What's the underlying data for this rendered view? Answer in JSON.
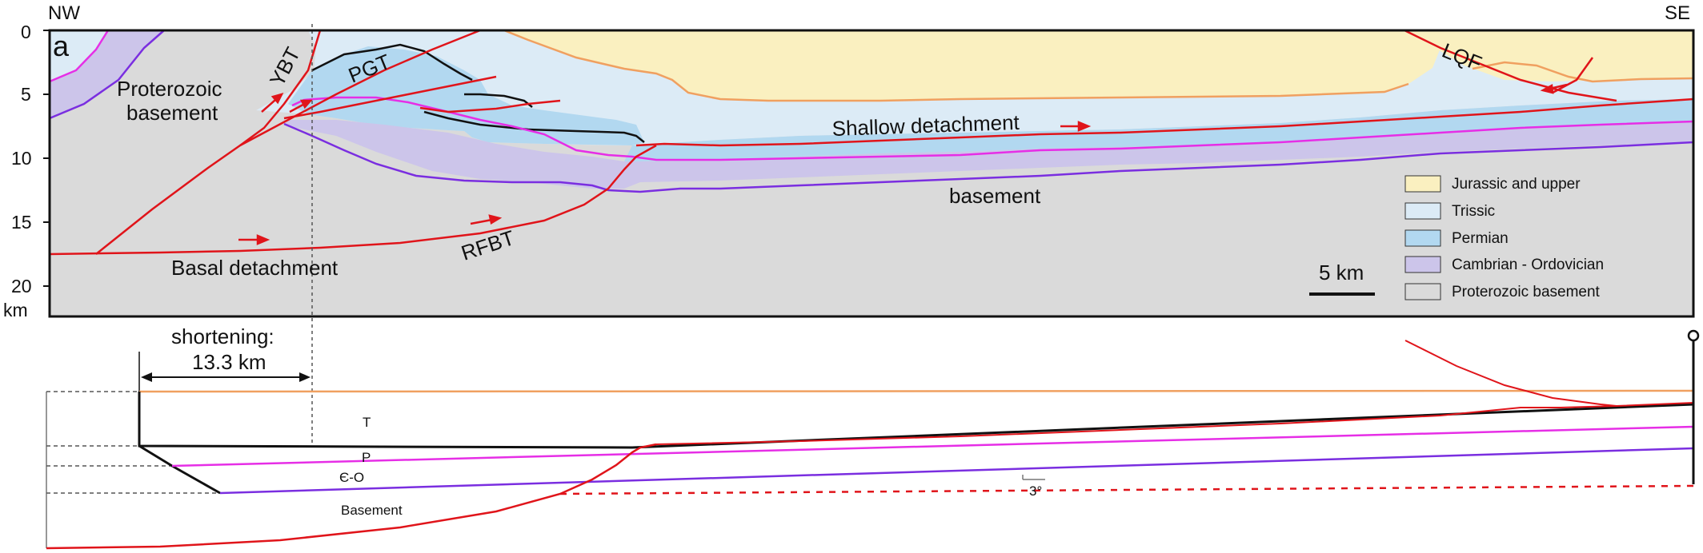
{
  "corner_labels": {
    "left": "NW",
    "right": "SE"
  },
  "panel_letter": "a",
  "depth_axis": {
    "ticks": [
      "0",
      "5",
      "10",
      "15",
      "20"
    ],
    "unit": "km"
  },
  "section_labels": {
    "proterozoic_basement": [
      "Proterozoic",
      "basement"
    ],
    "ybt": "YBT",
    "pgt": "PGT",
    "lqf": "LQF",
    "rfbt": "RFBT",
    "shallow_detachment": "Shallow detachment",
    "basal_detachment": "Basal detachment",
    "basement": "basement"
  },
  "scale_bar": {
    "label": "5 km"
  },
  "legend": [
    {
      "label": "Jurassic and upper",
      "color": "#faf0c0"
    },
    {
      "label": "Trissic",
      "color": "#dcebf6"
    },
    {
      "label": "Permian",
      "color": "#b2d8f0"
    },
    {
      "label": "Cambrian - Ordovician",
      "color": "#ccc5ea"
    },
    {
      "label": "Proterozoic basement",
      "color": "#dadada"
    }
  ],
  "restoration": {
    "shortening_label": "shortening:",
    "shortening_value": "13.3 km",
    "unit_labels": {
      "triassic": "T",
      "permian": "P",
      "cambro_ordovician": "Є-O",
      "basement": "Basement"
    },
    "dip_label": "3°"
  },
  "colors": {
    "fault": "#e0141a",
    "jurassic_base": "#f0a060",
    "permian_top": "#111111",
    "permian_base": "#e62ee6",
    "cambrian_base": "#7a2ee0"
  }
}
